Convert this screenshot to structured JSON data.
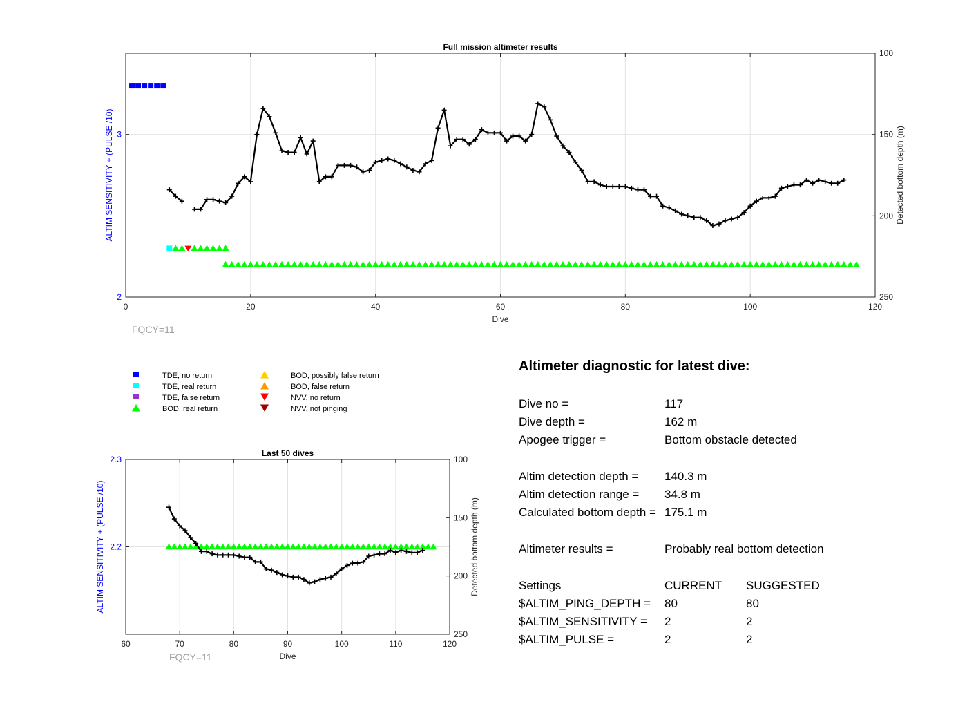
{
  "chart_data": [
    {
      "type": "line",
      "title": "Full mission altimeter results",
      "xlabel": "Dive",
      "ylabel_left": "ALTIM SENSITIVITY + (PULSE /10)",
      "ylabel_right": "Detected bottom depth (m)",
      "xlim": [
        0,
        120
      ],
      "ylim_left": [
        2,
        3.5
      ],
      "ylim_right": [
        250,
        100
      ],
      "xticks": [
        0,
        20,
        40,
        60,
        80,
        100,
        120
      ],
      "yticks_left": [
        2,
        3
      ],
      "yticks_right": [
        100,
        150,
        200,
        250
      ],
      "grid": true,
      "fqcy_label": "FQCY=11",
      "bottom_depth": [
        [
          7,
          184
        ],
        [
          8,
          188
        ],
        [
          9,
          191
        ],
        [
          11,
          196
        ],
        [
          12,
          196
        ],
        [
          13,
          190
        ],
        [
          14,
          190
        ],
        [
          15,
          191
        ],
        [
          16,
          192
        ],
        [
          17,
          188
        ],
        [
          18,
          180
        ],
        [
          19,
          176
        ],
        [
          20,
          179
        ],
        [
          21,
          150
        ],
        [
          22,
          134
        ],
        [
          23,
          139
        ],
        [
          24,
          149
        ],
        [
          25,
          160
        ],
        [
          26,
          161
        ],
        [
          27,
          161
        ],
        [
          28,
          152
        ],
        [
          29,
          162
        ],
        [
          30,
          154
        ],
        [
          31,
          179
        ],
        [
          32,
          176
        ],
        [
          33,
          176
        ],
        [
          34,
          169
        ],
        [
          35,
          169
        ],
        [
          36,
          169
        ],
        [
          37,
          170
        ],
        [
          38,
          173
        ],
        [
          39,
          172
        ],
        [
          40,
          167
        ],
        [
          41,
          166
        ],
        [
          42,
          165
        ],
        [
          43,
          166
        ],
        [
          44,
          168
        ],
        [
          45,
          170
        ],
        [
          46,
          172
        ],
        [
          47,
          173
        ],
        [
          48,
          168
        ],
        [
          49,
          166
        ],
        [
          50,
          146
        ],
        [
          51,
          135
        ],
        [
          52,
          157
        ],
        [
          53,
          153
        ],
        [
          54,
          153
        ],
        [
          55,
          156
        ],
        [
          56,
          153
        ],
        [
          57,
          147
        ],
        [
          58,
          149
        ],
        [
          59,
          149
        ],
        [
          60,
          149
        ],
        [
          61,
          154
        ],
        [
          62,
          151
        ],
        [
          63,
          151
        ],
        [
          64,
          154
        ],
        [
          65,
          150
        ],
        [
          66,
          131
        ],
        [
          67,
          133
        ],
        [
          68,
          141
        ],
        [
          69,
          151
        ],
        [
          70,
          157
        ],
        [
          71,
          161
        ],
        [
          72,
          167
        ],
        [
          73,
          172
        ],
        [
          74,
          179
        ],
        [
          75,
          179
        ],
        [
          76,
          181
        ],
        [
          77,
          182
        ],
        [
          78,
          182
        ],
        [
          79,
          182
        ],
        [
          80,
          182
        ],
        [
          81,
          183
        ],
        [
          82,
          184
        ],
        [
          83,
          184
        ],
        [
          84,
          188
        ],
        [
          85,
          188
        ],
        [
          86,
          194
        ],
        [
          87,
          195
        ],
        [
          88,
          197
        ],
        [
          89,
          199
        ],
        [
          90,
          200
        ],
        [
          91,
          201
        ],
        [
          92,
          201
        ],
        [
          93,
          203
        ],
        [
          94,
          206
        ],
        [
          95,
          205
        ],
        [
          96,
          203
        ],
        [
          97,
          202
        ],
        [
          98,
          201
        ],
        [
          99,
          198
        ],
        [
          100,
          194
        ],
        [
          101,
          191
        ],
        [
          102,
          189
        ],
        [
          103,
          189
        ],
        [
          104,
          188
        ],
        [
          105,
          183
        ],
        [
          106,
          182
        ],
        [
          107,
          181
        ],
        [
          108,
          181
        ],
        [
          109,
          178
        ],
        [
          110,
          180
        ],
        [
          111,
          178
        ],
        [
          112,
          179
        ],
        [
          113,
          180
        ],
        [
          114,
          180
        ],
        [
          115,
          178
        ]
      ],
      "tde_no_return": {
        "x": [
          1,
          2,
          3,
          4,
          5,
          6
        ],
        "y": 3.3
      },
      "tde_real_return": {
        "x": [
          7
        ],
        "y": 2.3
      },
      "bod_real_return_early": {
        "x": [
          8,
          9,
          11,
          12,
          13,
          14,
          15,
          16
        ],
        "y": 2.3
      },
      "nvv_no_return": {
        "x": [
          10
        ],
        "y": 2.3
      },
      "bod_real_return_range": {
        "x_start": 16,
        "x_end": 117,
        "y": 2.2
      }
    },
    {
      "type": "line",
      "title": "Last 50 dives",
      "xlabel": "Dive",
      "ylabel_left": "ALTIM SENSITIVITY + (PULSE /10)",
      "ylabel_right": "Detected bottom depth (m)",
      "xlim": [
        60,
        120
      ],
      "ylim_left": [
        2.1,
        2.3
      ],
      "ylim_right": [
        250,
        100
      ],
      "xticks": [
        60,
        70,
        80,
        90,
        100,
        110,
        120
      ],
      "yticks_left": [
        2.2,
        2.3
      ],
      "yticks_right": [
        100,
        150,
        200,
        250
      ],
      "grid": true,
      "fqcy_label": "FQCY=11",
      "bottom_depth_from_dive": 68,
      "bod_real_return_range": {
        "x_start": 68,
        "x_end": 117,
        "y": 2.2
      }
    }
  ],
  "legend": [
    {
      "label": "TDE, no return",
      "marker": "square",
      "color": "#0000ff"
    },
    {
      "label": "TDE, real return",
      "marker": "square",
      "color": "#00ffff"
    },
    {
      "label": "TDE, false return",
      "marker": "square",
      "color": "#9933cc"
    },
    {
      "label": "BOD, real return",
      "marker": "triangle-up",
      "color": "#00ff00"
    },
    {
      "label": "BOD, possibly false return",
      "marker": "triangle-up",
      "color": "#ffcc00"
    },
    {
      "label": "BOD, false return",
      "marker": "triangle-up",
      "color": "#ff9900"
    },
    {
      "label": "NVV, no return",
      "marker": "triangle-down",
      "color": "#ff0000"
    },
    {
      "label": "NVV, not pinging",
      "marker": "triangle-down",
      "color": "#990000"
    }
  ],
  "diagnostic": {
    "title": "Altimeter diagnostic for latest dive:",
    "rows": [
      {
        "label": "Dive no =",
        "value": "117"
      },
      {
        "label": "Dive depth =",
        "value": "162 m"
      },
      {
        "label": "Apogee trigger =",
        "value": "Bottom obstacle detected"
      },
      {
        "label": "Altim detection depth =",
        "value": "140.3 m"
      },
      {
        "label": "Altim detection range =",
        "value": "34.8 m"
      },
      {
        "label": "Calculated bottom depth =",
        "value": "175.1 m"
      },
      {
        "label": "Altimeter results =",
        "value": "Probably real bottom detection"
      }
    ],
    "settings_header": {
      "label": "Settings",
      "current": "CURRENT",
      "suggested": "SUGGESTED"
    },
    "settings": [
      {
        "label": "$ALTIM_PING_DEPTH =",
        "current": "80",
        "suggested": "80"
      },
      {
        "label": "$ALTIM_SENSITIVITY =",
        "current": "2",
        "suggested": "2"
      },
      {
        "label": "$ALTIM_PULSE =",
        "current": "2",
        "suggested": "2"
      }
    ]
  }
}
